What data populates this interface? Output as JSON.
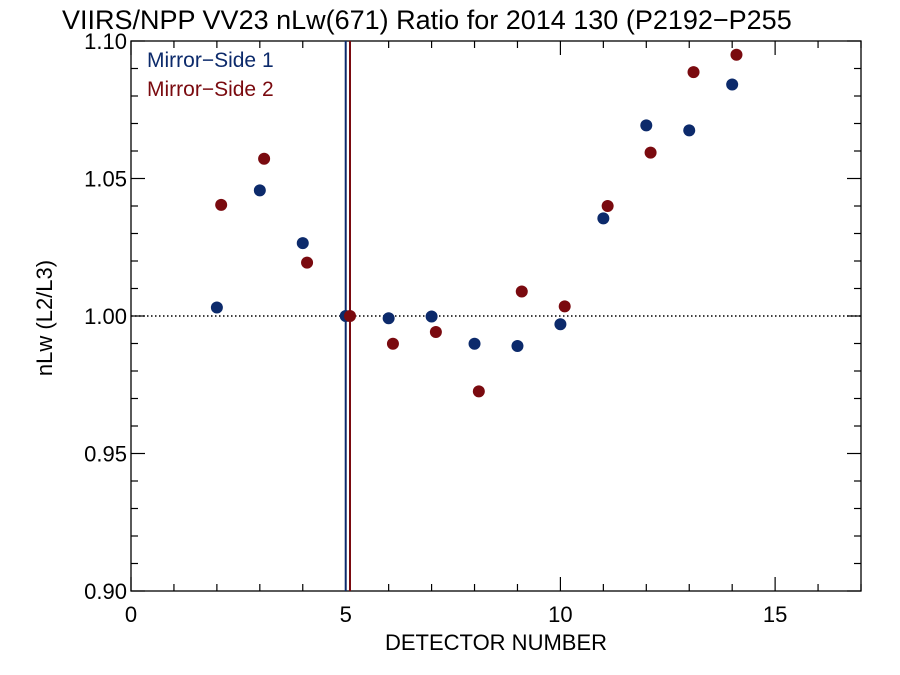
{
  "chart_data": {
    "type": "scatter",
    "title": "VIIRS/NPP VV23 nLw(671) Ratio for 2014 130 (P2192−P255",
    "xlabel": "DETECTOR NUMBER",
    "ylabel": "nLw (L2/L3)",
    "xlim": [
      0,
      17
    ],
    "ylim": [
      0.9,
      1.1
    ],
    "x_ticks": [
      0,
      5,
      10,
      15
    ],
    "x_tick_labels": [
      "0",
      "5",
      "10",
      "15"
    ],
    "y_ticks": [
      0.9,
      0.95,
      1.0,
      1.05,
      1.1
    ],
    "y_tick_labels": [
      "0.90",
      "0.95",
      "1.00",
      "1.05",
      "1.10"
    ],
    "reference_line_y": 1.0,
    "vertical_lines": [
      {
        "x": 5.0,
        "color": "#0c2a6b"
      },
      {
        "x": 5.1,
        "color": "#7a0a0f"
      }
    ],
    "legend_position": "top-left",
    "series": [
      {
        "name": "Mirror−Side 1",
        "color": "#0c2a6b",
        "x": [
          2,
          3,
          4,
          5,
          6,
          7,
          8,
          9,
          10,
          11,
          12,
          13,
          14
        ],
        "y": [
          1.0031,
          1.0457,
          1.0265,
          1.0,
          0.9992,
          0.9998,
          0.9899,
          0.9891,
          0.997,
          1.0355,
          1.0693,
          1.0675,
          1.0842
        ]
      },
      {
        "name": "Mirror−Side 2",
        "color": "#7a0a0f",
        "x": [
          2.1,
          3.1,
          4.1,
          5.1,
          6.1,
          7.1,
          8.1,
          9.1,
          10.1,
          11.1,
          12.1,
          13.1,
          14.1
        ],
        "y": [
          1.0404,
          1.0572,
          1.0194,
          1.0,
          0.9899,
          0.9942,
          0.9726,
          1.0089,
          1.0035,
          1.04,
          1.0594,
          1.0887,
          1.095
        ]
      }
    ]
  }
}
